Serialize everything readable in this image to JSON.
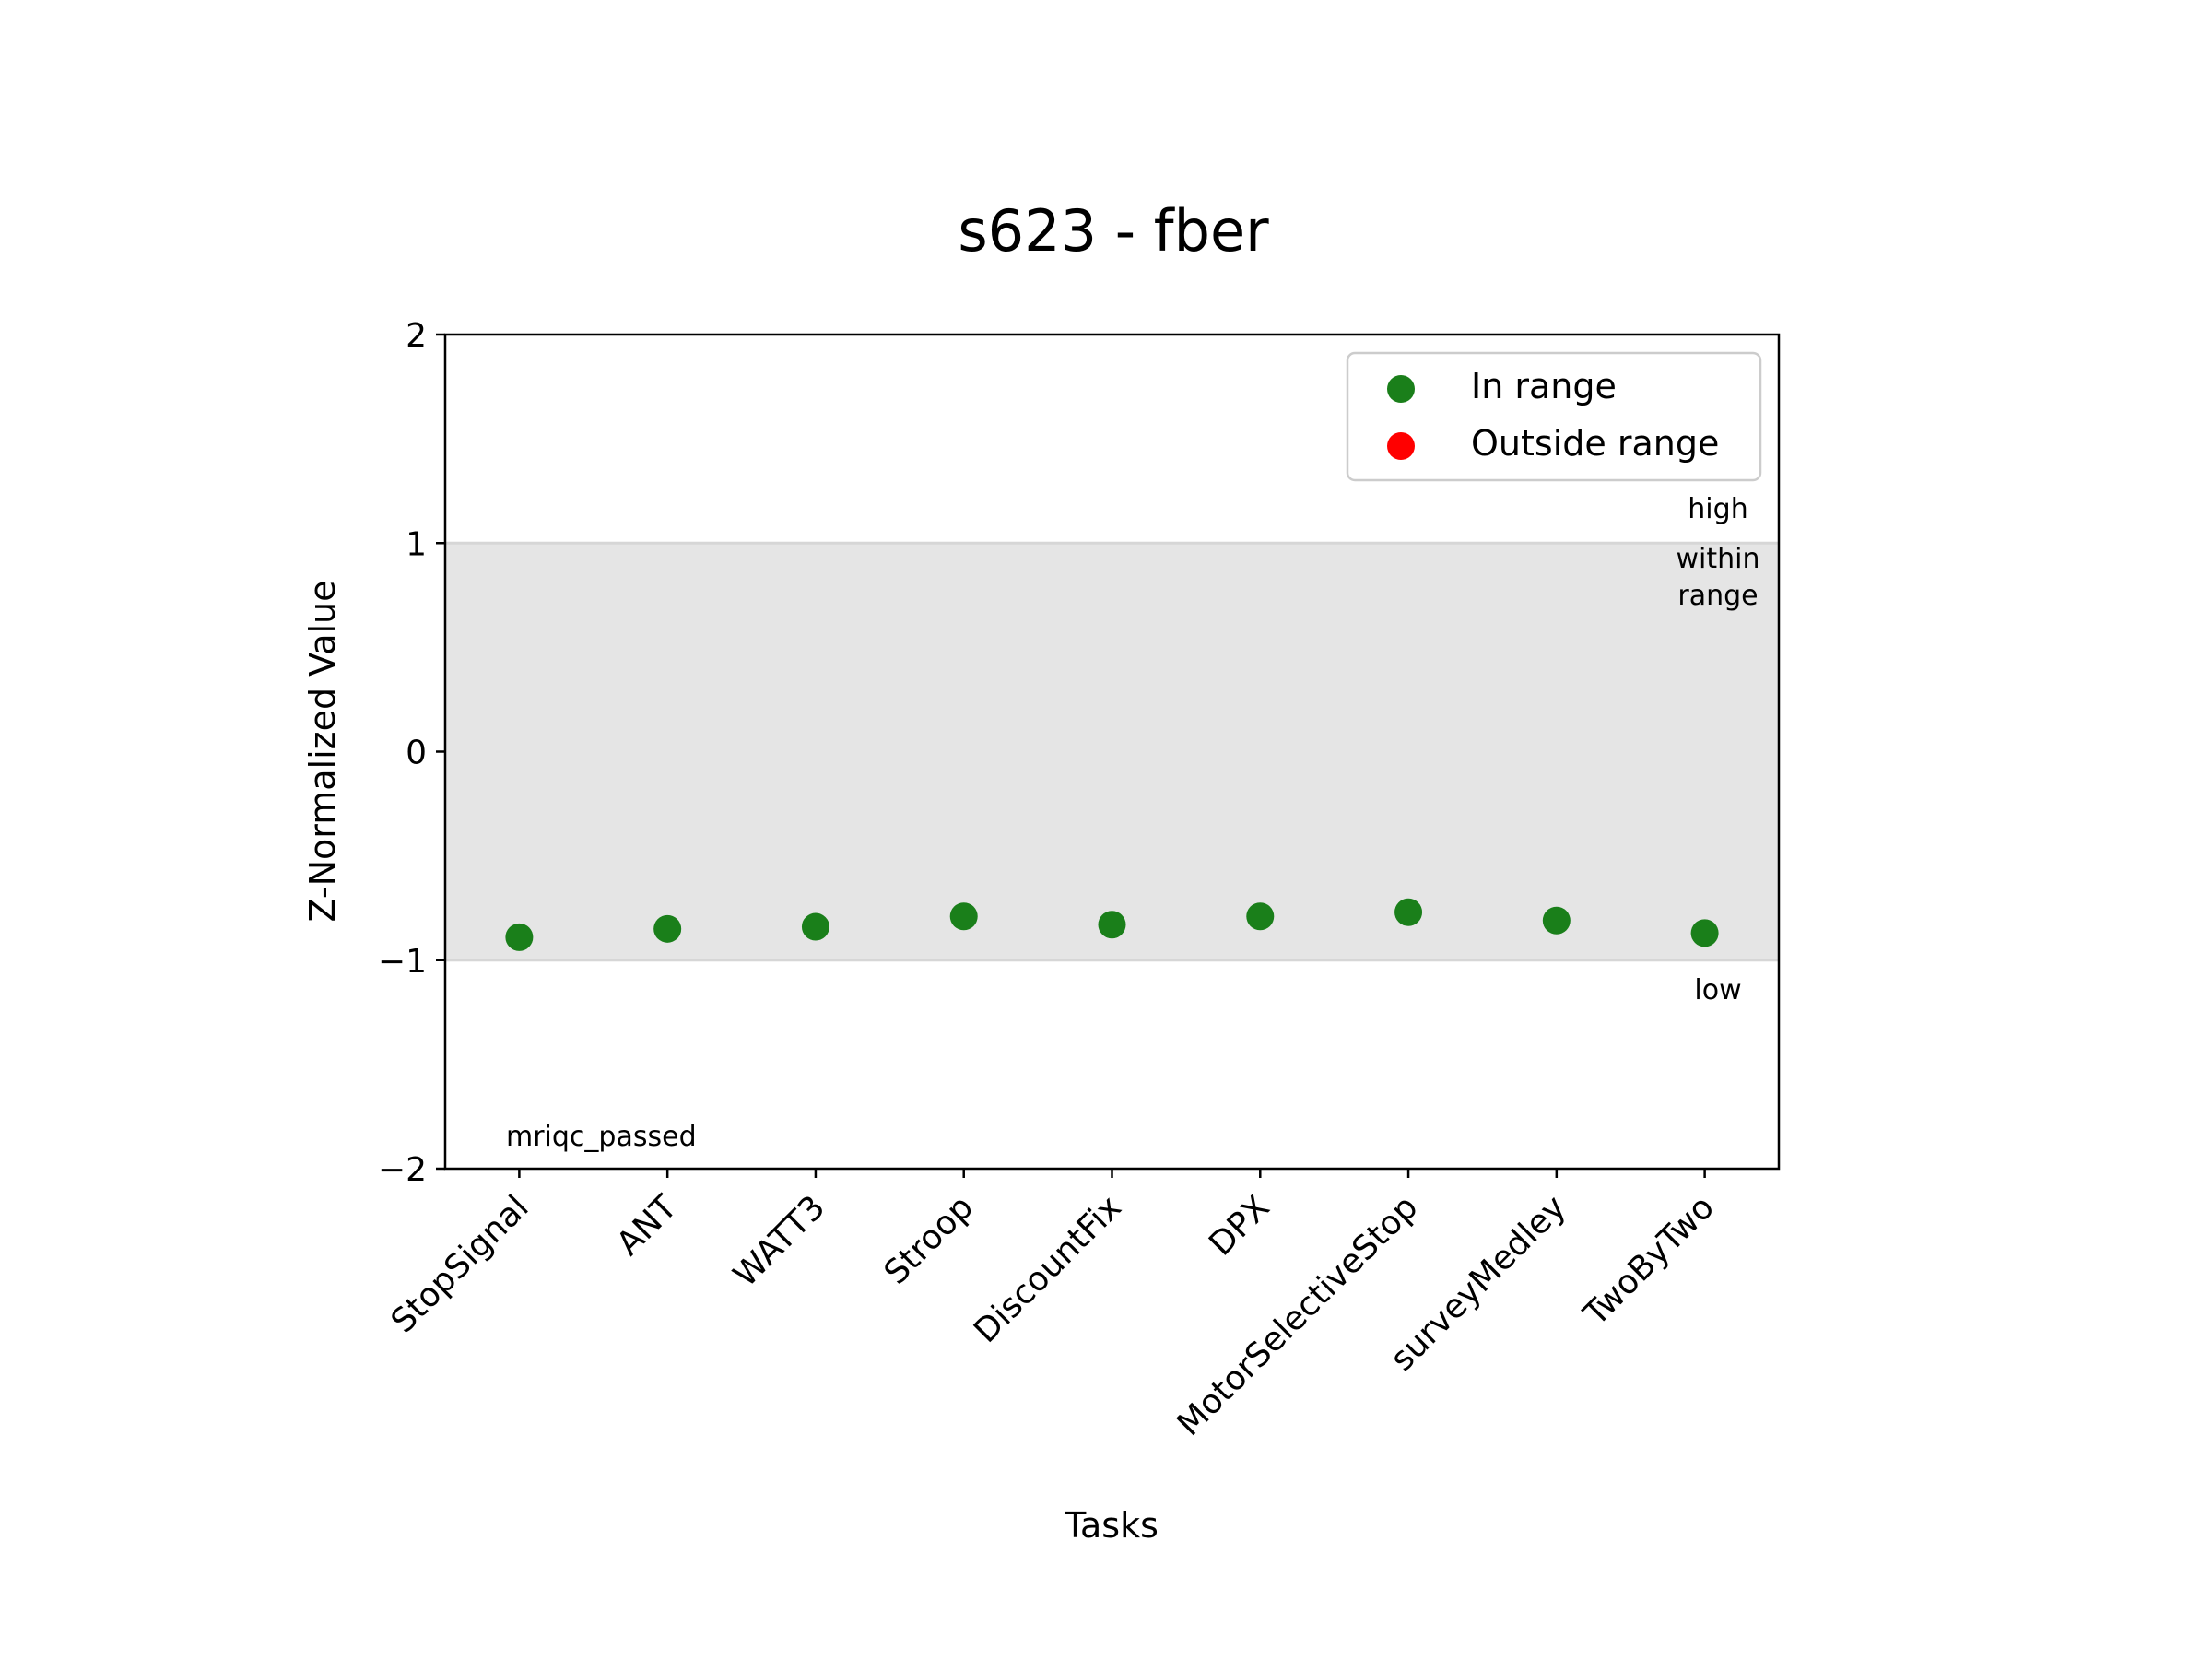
{
  "chart_data": {
    "type": "scatter",
    "title": "s623 - fber",
    "xlabel": "Tasks",
    "ylabel": "Z-Normalized Value",
    "ylim": [
      -2,
      2
    ],
    "yticks": [
      2,
      1,
      0,
      -1,
      -2
    ],
    "ytick_labels": [
      "2",
      "1",
      "0",
      "−1",
      "−2"
    ],
    "categories": [
      "StopSignal",
      "ANT",
      "WATT3",
      "Stroop",
      "DiscountFix",
      "DPX",
      "MotorSelectiveStop",
      "surveyMedley",
      "TwoByTwo"
    ],
    "series": [
      {
        "name": "In range",
        "color": "#1a7f1a",
        "values": [
          -0.89,
          -0.85,
          -0.84,
          -0.79,
          -0.83,
          -0.79,
          -0.77,
          -0.81,
          -0.87
        ]
      },
      {
        "name": "Outside range",
        "color": "#ff0000",
        "values": []
      }
    ],
    "normal_band": {
      "low": -1,
      "high": 1,
      "color": "#e5e5e5"
    },
    "annotations": {
      "high": "high",
      "within_1": "within",
      "within_2": "range",
      "low": "low",
      "status": "mriqc_passed"
    },
    "legend_position": "upper right",
    "grid": false
  }
}
